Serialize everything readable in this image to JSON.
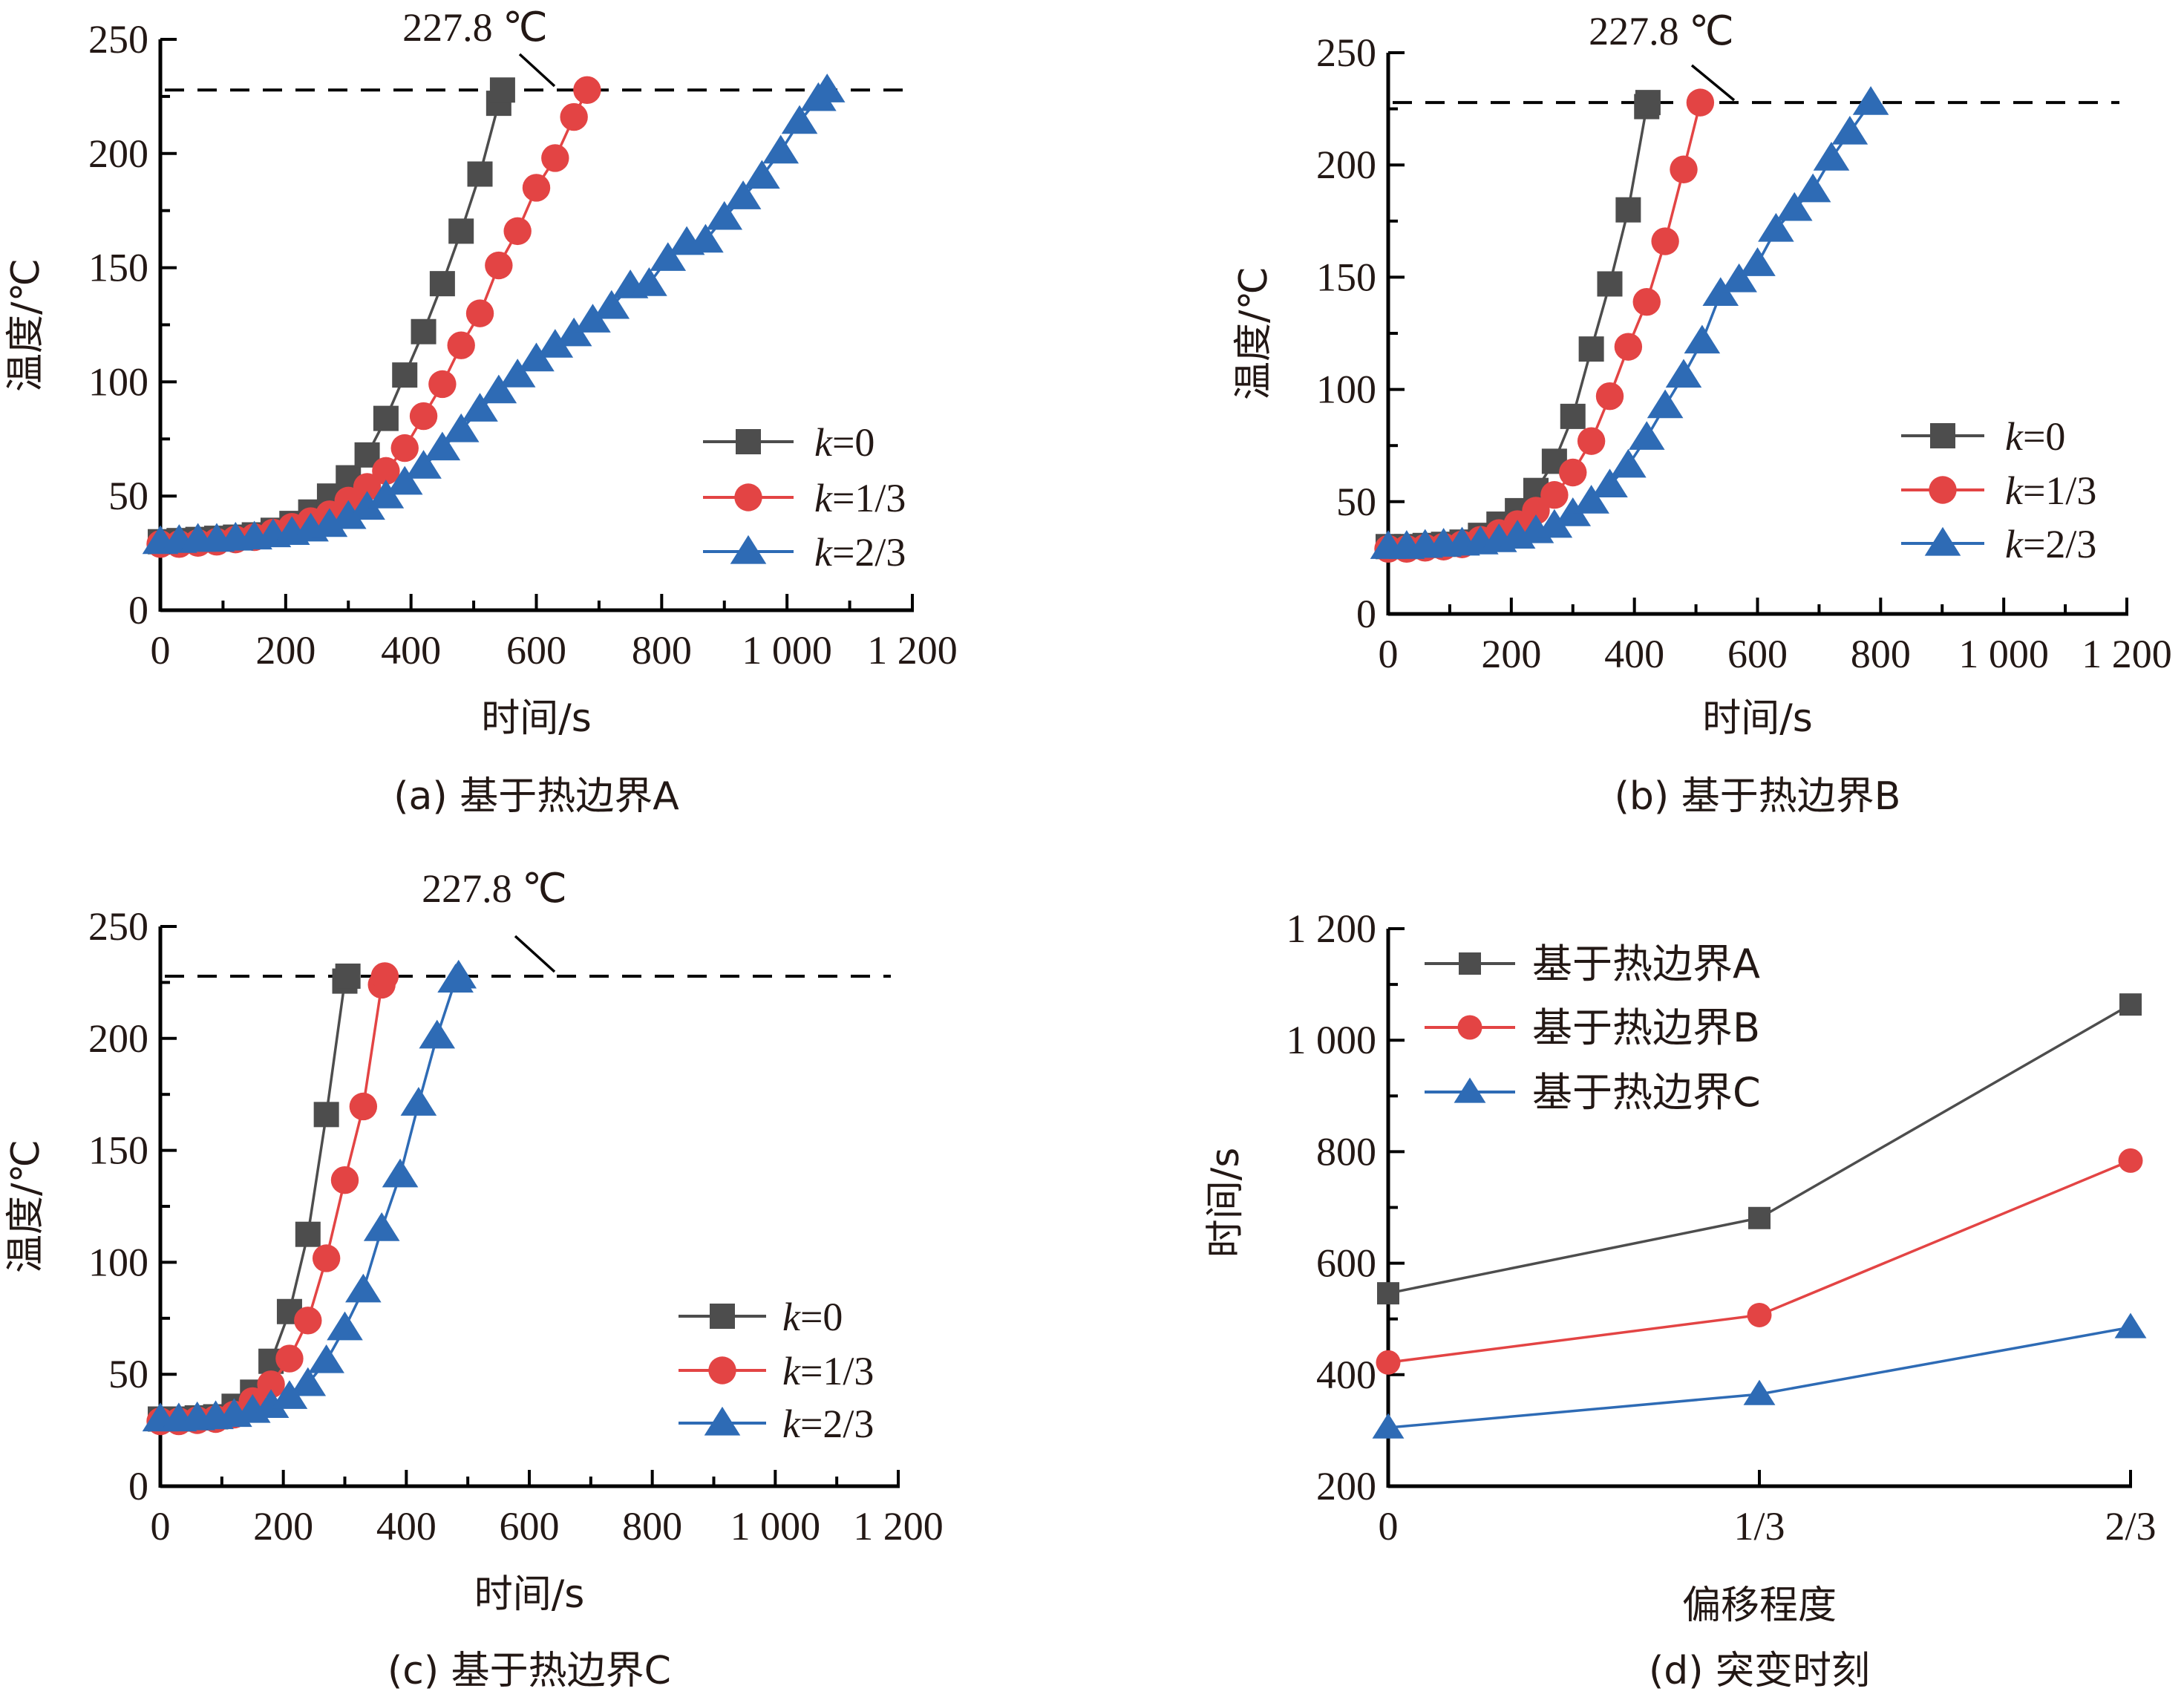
{
  "colors": {
    "k0": "#4d4d4d",
    "k13": "#e34444",
    "k23": "#2e6bb5",
    "text": "#231815"
  },
  "chart_data": [
    {
      "id": "a",
      "type": "line",
      "caption": "(a) 基于热边界A",
      "xlabel": "时间/s",
      "ylabel": "温度/℃",
      "xlim": [
        0,
        1200
      ],
      "ylim": [
        0,
        250
      ],
      "xticks": [
        0,
        200,
        400,
        600,
        800,
        1000,
        1200
      ],
      "xtick_labels": [
        "0",
        "200",
        "400",
        "600",
        "800",
        "1 000",
        "1 200"
      ],
      "yticks": [
        0,
        50,
        100,
        150,
        200,
        250
      ],
      "ytick_labels": [
        "0",
        "50",
        "100",
        "150",
        "200",
        "250"
      ],
      "threshold": {
        "value": 227.8,
        "label": "227.8 ℃"
      },
      "legend_position": "center-right",
      "grid": false,
      "series": [
        {
          "name": "k=0",
          "label_var": "k",
          "label_rest": "=0",
          "marker": "square",
          "color_key": "k0",
          "x": [
            0,
            30,
            60,
            90,
            120,
            150,
            180,
            210,
            240,
            270,
            300,
            330,
            360,
            390,
            420,
            450,
            480,
            510,
            540,
            546
          ],
          "y": [
            30,
            30.5,
            31,
            31.5,
            32,
            33,
            35,
            38,
            43,
            50,
            58,
            68,
            84,
            103,
            122,
            143,
            166,
            191,
            222,
            227.8
          ]
        },
        {
          "name": "k=1/3",
          "label_var": "k",
          "label_rest": "=1/3",
          "marker": "circle",
          "color_key": "k13",
          "x": [
            0,
            30,
            60,
            90,
            120,
            150,
            180,
            210,
            240,
            270,
            300,
            330,
            360,
            390,
            420,
            450,
            480,
            510,
            540,
            570,
            600,
            630,
            660,
            681
          ],
          "y": [
            29,
            29,
            29.5,
            30,
            31,
            32,
            34,
            36.5,
            39,
            42,
            48,
            54,
            61,
            71,
            85,
            99,
            116,
            130,
            151,
            166,
            185,
            198,
            216,
            227.8
          ]
        },
        {
          "name": "k=2/3",
          "label_var": "k",
          "label_rest": "=2/3",
          "marker": "triangle",
          "color_key": "k23",
          "x": [
            0,
            30,
            60,
            90,
            120,
            150,
            180,
            210,
            240,
            270,
            300,
            330,
            360,
            390,
            420,
            450,
            480,
            510,
            540,
            570,
            600,
            630,
            660,
            690,
            720,
            750,
            780,
            810,
            840,
            870,
            900,
            930,
            960,
            990,
            1020,
            1050,
            1064
          ],
          "y": [
            30,
            30.5,
            31,
            31,
            31.5,
            32,
            33,
            34,
            35.5,
            37.5,
            41,
            45,
            50,
            56,
            63,
            71,
            79,
            88,
            96,
            103,
            110,
            116,
            121,
            127,
            133,
            142,
            143,
            154,
            161,
            162,
            172,
            181,
            190,
            201,
            214,
            224,
            227.8
          ]
        }
      ]
    },
    {
      "id": "b",
      "type": "line",
      "caption": "(b) 基于热边界B",
      "xlabel": "时间/s",
      "ylabel": "温度/℃",
      "xlim": [
        0,
        1200
      ],
      "ylim": [
        0,
        250
      ],
      "xticks": [
        0,
        200,
        400,
        600,
        800,
        1000,
        1200
      ],
      "xtick_labels": [
        "0",
        "200",
        "400",
        "600",
        "800",
        "1 000",
        "1 200"
      ],
      "yticks": [
        0,
        50,
        100,
        150,
        200,
        250
      ],
      "ytick_labels": [
        "0",
        "50",
        "100",
        "150",
        "200",
        "250"
      ],
      "threshold": {
        "value": 227.8,
        "label": "227.8 ℃"
      },
      "legend_position": "center-right",
      "grid": false,
      "series": [
        {
          "name": "k=0",
          "label_var": "k",
          "label_rest": "=0",
          "marker": "square",
          "color_key": "k0",
          "x": [
            0,
            30,
            60,
            90,
            120,
            150,
            180,
            210,
            240,
            270,
            300,
            330,
            360,
            390,
            420,
            422
          ],
          "y": [
            30,
            30,
            30.5,
            31,
            32,
            35,
            40,
            46,
            55,
            68,
            88,
            118,
            147,
            180,
            226,
            227.8
          ]
        },
        {
          "name": "k=1/3",
          "label_var": "k",
          "label_rest": "=1/3",
          "marker": "circle",
          "color_key": "k13",
          "x": [
            0,
            30,
            60,
            90,
            120,
            150,
            180,
            210,
            240,
            270,
            300,
            330,
            360,
            390,
            420,
            450,
            480,
            507
          ],
          "y": [
            29,
            29,
            29.5,
            30,
            31,
            33,
            36,
            40,
            46,
            53,
            63,
            77,
            97,
            119,
            139,
            166,
            198,
            227.8
          ]
        },
        {
          "name": "k=2/3",
          "label_var": "k",
          "label_rest": "=2/3",
          "marker": "triangle",
          "color_key": "k23",
          "x": [
            0,
            30,
            60,
            90,
            120,
            150,
            180,
            210,
            240,
            270,
            300,
            330,
            360,
            390,
            420,
            450,
            480,
            510,
            540,
            570,
            600,
            630,
            660,
            690,
            720,
            750,
            784
          ],
          "y": [
            30,
            30,
            30.5,
            31,
            31.5,
            32,
            33,
            34.6,
            37,
            39.4,
            44.6,
            50.2,
            57.4,
            66.2,
            78.6,
            92.7,
            106.3,
            121.5,
            142.7,
            148.8,
            156,
            171.3,
            180.6,
            188.9,
            203,
            214.6,
            227.8
          ]
        }
      ]
    },
    {
      "id": "c",
      "type": "line",
      "caption": "(c) 基于热边界C",
      "xlabel": "时间/s",
      "ylabel": "温度/℃",
      "xlim": [
        0,
        1200
      ],
      "ylim": [
        0,
        250
      ],
      "xticks": [
        0,
        200,
        400,
        600,
        800,
        1000,
        1200
      ],
      "xtick_labels": [
        "0",
        "200",
        "400",
        "600",
        "800",
        "1 000",
        "1 200"
      ],
      "yticks": [
        0,
        50,
        100,
        150,
        200,
        250
      ],
      "ytick_labels": [
        "0",
        "50",
        "100",
        "150",
        "200",
        "250"
      ],
      "threshold": {
        "value": 227.8,
        "label": "227.8 ℃"
      },
      "legend_position": "center-right",
      "grid": false,
      "series": [
        {
          "name": "k=0",
          "label_var": "k",
          "label_rest": "=0",
          "marker": "square",
          "color_key": "k0",
          "x": [
            0,
            30,
            60,
            90,
            120,
            150,
            180,
            210,
            240,
            270,
            300,
            305
          ],
          "y": [
            30,
            30,
            30.5,
            31,
            35.7,
            42,
            55.8,
            78,
            112.5,
            166,
            225.6,
            227.8
          ]
        },
        {
          "name": "k=1/3",
          "label_var": "k",
          "label_rest": "=1/3",
          "marker": "circle",
          "color_key": "k13",
          "x": [
            0,
            30,
            60,
            90,
            120,
            150,
            180,
            210,
            240,
            270,
            300,
            330,
            360,
            365
          ],
          "y": [
            29,
            29,
            29.5,
            30,
            32,
            38,
            45.5,
            57,
            74,
            101.8,
            136.7,
            169.6,
            224,
            227.8
          ]
        },
        {
          "name": "k=2/3",
          "label_var": "k",
          "label_rest": "=2/3",
          "marker": "triangle",
          "color_key": "k23",
          "x": [
            0,
            30,
            60,
            90,
            120,
            150,
            180,
            210,
            240,
            270,
            300,
            330,
            360,
            390,
            420,
            450,
            480,
            485
          ],
          "y": [
            30,
            30,
            30.5,
            31,
            32,
            33.8,
            36,
            40,
            45.8,
            56,
            70.7,
            87.6,
            115,
            139,
            171,
            201,
            226,
            227.8
          ]
        }
      ]
    },
    {
      "id": "d",
      "type": "line",
      "caption": "(d) 突变时刻",
      "xlabel": "偏移程度",
      "ylabel": "时间/s",
      "categories": [
        "0",
        "1/3",
        "2/3"
      ],
      "ylim": [
        200,
        1200
      ],
      "yticks": [
        200,
        400,
        600,
        800,
        1000,
        1200
      ],
      "ytick_labels": [
        "200",
        "400",
        "600",
        "800",
        "1 000",
        "1 200"
      ],
      "legend_position": "top-left",
      "grid": false,
      "series": [
        {
          "name": "基于热边界A",
          "marker": "square",
          "color_key": "k0",
          "values": [
            546,
            681,
            1064
          ]
        },
        {
          "name": "基于热边界B",
          "marker": "circle",
          "color_key": "k13",
          "values": [
            422,
            507,
            784
          ]
        },
        {
          "name": "基于热边界C",
          "marker": "triangle",
          "color_key": "k23",
          "values": [
            305,
            365,
            485
          ]
        }
      ]
    }
  ]
}
